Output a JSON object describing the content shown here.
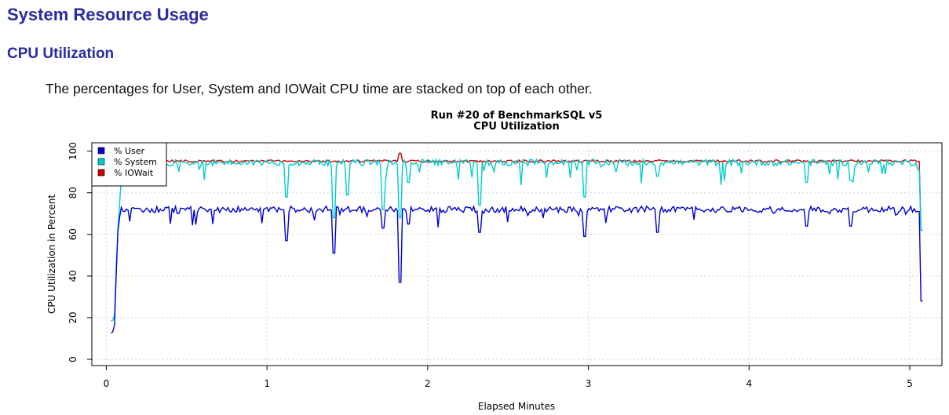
{
  "page": {
    "title": "System Resource Usage",
    "section": "CPU Utilization",
    "description": "The percentages for User, System and IOWait CPU time are stacked on top of each other."
  },
  "chart_data": {
    "type": "line",
    "title": "Run #20 of BenchmarkSQL v5",
    "subtitle": "CPU Utilization",
    "xlabel": "Elapsed Minutes",
    "ylabel": "CPU Utilization in Percent",
    "xlim": [
      -0.09,
      5.2
    ],
    "ylim": [
      -3,
      104
    ],
    "xticks": [
      0,
      1,
      2,
      3,
      4,
      5
    ],
    "yticks": [
      0,
      20,
      40,
      60,
      80,
      100
    ],
    "grid": true,
    "legend_position": "top-left",
    "stacked": true,
    "series": [
      {
        "name": "% User",
        "color": "#0000cd",
        "baseline": 72,
        "keypoints": [
          [
            0.0,
            12.5
          ],
          [
            0.03,
            12.5
          ],
          [
            0.05,
            14
          ],
          [
            0.07,
            60
          ],
          [
            0.09,
            73
          ],
          [
            0.2,
            72.5
          ],
          [
            0.45,
            70
          ],
          [
            1.12,
            57
          ],
          [
            1.42,
            51
          ],
          [
            1.72,
            63
          ],
          [
            1.83,
            37
          ],
          [
            1.88,
            65
          ],
          [
            2.32,
            61
          ],
          [
            2.98,
            59
          ],
          [
            3.43,
            61
          ],
          [
            4.36,
            64
          ],
          [
            4.63,
            64
          ],
          [
            5.06,
            71
          ],
          [
            5.08,
            28
          ]
        ]
      },
      {
        "name": "% System",
        "color": "#00cccc",
        "baseline": 94.5,
        "keypoints": [
          [
            0.0,
            20
          ],
          [
            0.03,
            18.5
          ],
          [
            0.05,
            19
          ],
          [
            0.07,
            60
          ],
          [
            0.1,
            95
          ],
          [
            0.4,
            93
          ],
          [
            1.12,
            78
          ],
          [
            1.42,
            68
          ],
          [
            1.5,
            79
          ],
          [
            1.72,
            72
          ],
          [
            1.83,
            68
          ],
          [
            1.88,
            85
          ],
          [
            2.32,
            74
          ],
          [
            2.98,
            78
          ],
          [
            3.43,
            88
          ],
          [
            4.36,
            85
          ],
          [
            4.63,
            86
          ],
          [
            5.06,
            91
          ],
          [
            5.08,
            62
          ]
        ]
      },
      {
        "name": "% IOWait",
        "color": "#cc0000",
        "baseline": 95.2,
        "keypoints": [
          [
            0.1,
            95
          ],
          [
            1.83,
            99
          ],
          [
            5.06,
            95
          ],
          [
            5.08,
            62
          ]
        ]
      }
    ]
  }
}
